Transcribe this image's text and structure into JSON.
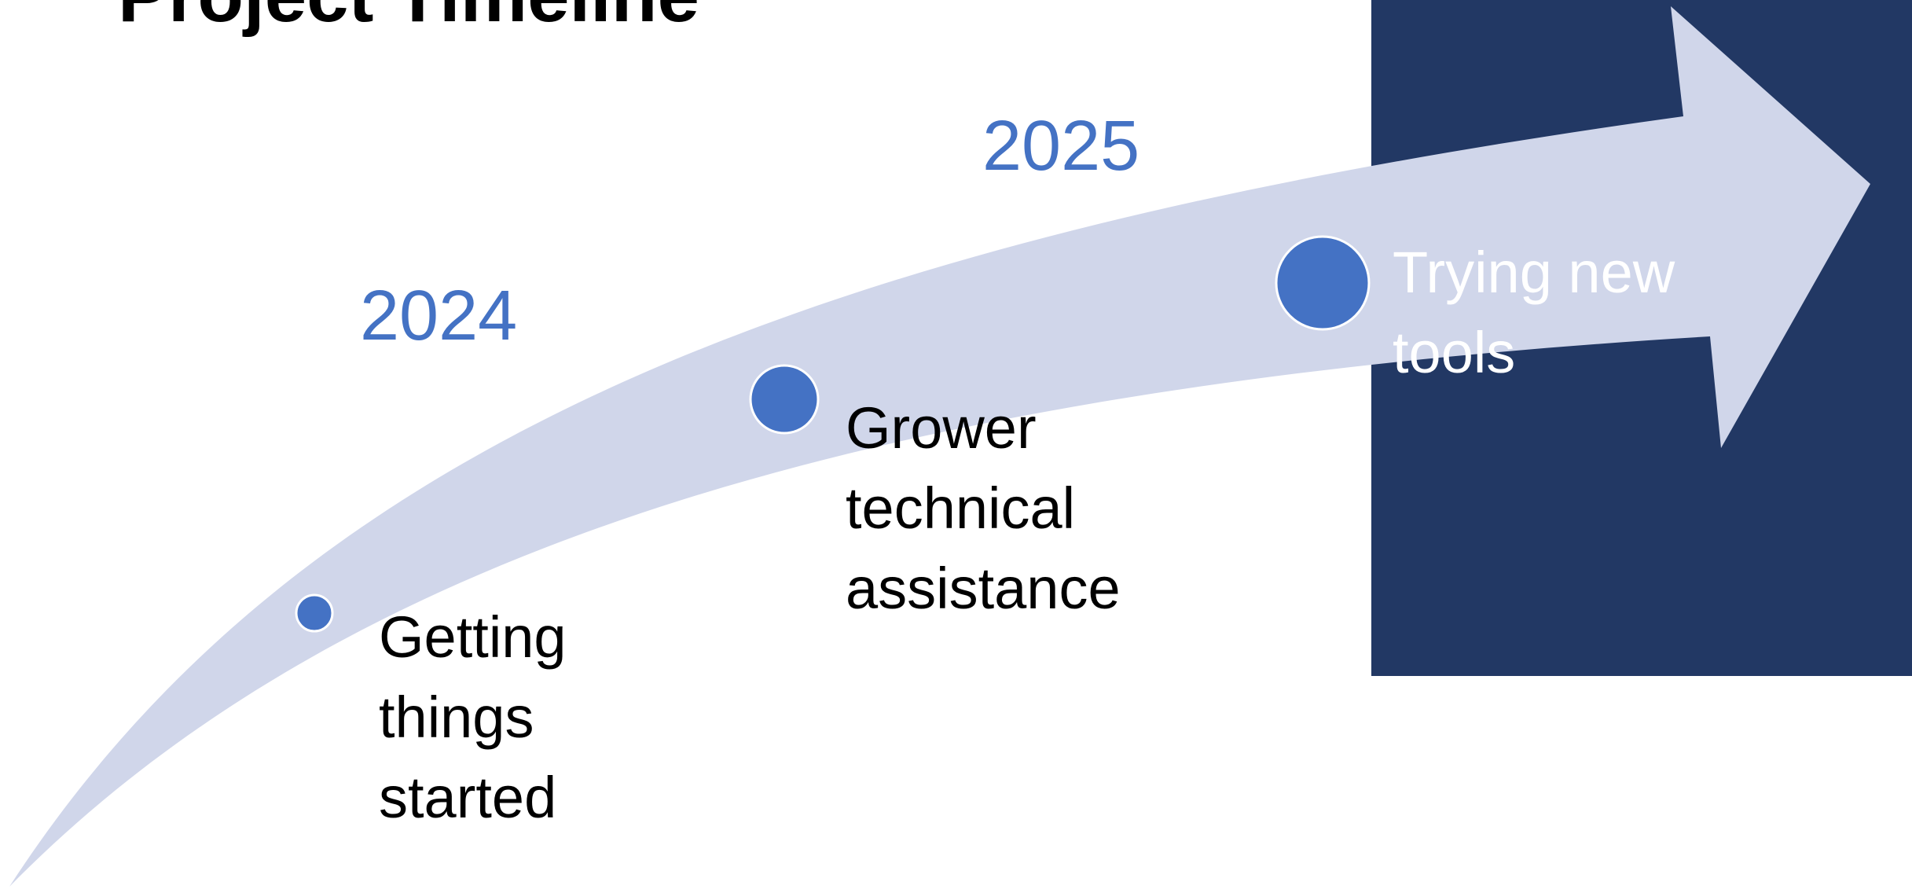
{
  "title": "Project Timeline",
  "colors": {
    "panel": "#223864",
    "arrow": "#D0D6EA",
    "accent": "#4472C4",
    "text_dark": "#000000",
    "text_light": "#ffffff"
  },
  "years": [
    {
      "label": "2024"
    },
    {
      "label": "2025"
    }
  ],
  "milestones": [
    {
      "text": "Getting things started"
    },
    {
      "text": "Grower technical assistance"
    },
    {
      "text": "Trying new tools"
    }
  ]
}
